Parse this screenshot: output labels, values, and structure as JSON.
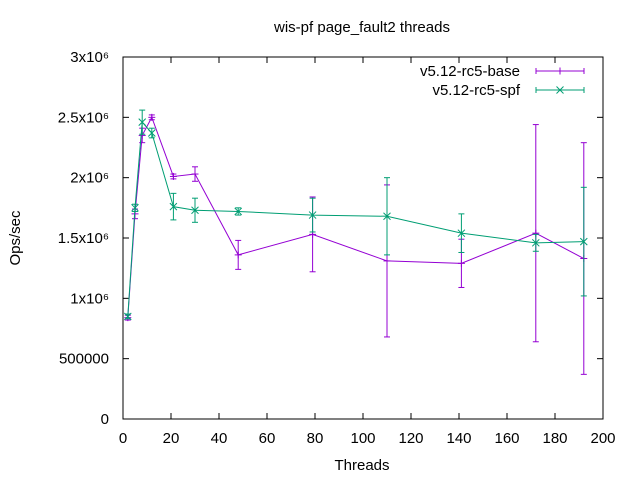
{
  "chart_data": {
    "type": "line",
    "title": "wis-pf page_fault2 threads",
    "xlabel": "Threads",
    "ylabel": "Ops/sec",
    "xlim": [
      0,
      200
    ],
    "ylim": [
      0,
      3000000
    ],
    "x_ticks": [
      0,
      20,
      40,
      60,
      80,
      100,
      120,
      140,
      160,
      180,
      200
    ],
    "y_ticks": [
      {
        "value": 0,
        "label": "0"
      },
      {
        "value": 500000,
        "label": "500000"
      },
      {
        "value": 1000000,
        "label": "1x10⁶"
      },
      {
        "value": 1500000,
        "label": "1.5x10⁶"
      },
      {
        "value": 2000000,
        "label": "2x10⁶"
      },
      {
        "value": 2500000,
        "label": "2.5x10⁶"
      },
      {
        "value": 3000000,
        "label": "3x10⁶"
      }
    ],
    "grid": false,
    "legend_position": "top-right",
    "error_bars": true,
    "series": [
      {
        "name": "v5.12-rc5-base",
        "color": "#9400d3",
        "marker": "plus",
        "x": [
          2,
          5,
          8,
          12,
          21,
          30,
          48,
          79,
          110,
          141,
          172,
          192
        ],
        "y": [
          840000,
          1700000,
          2350000,
          2500000,
          2010000,
          2030000,
          1360000,
          1530000,
          1310000,
          1290000,
          1540000,
          1330000
        ],
        "y_low": [
          820000,
          1660000,
          2290000,
          2480000,
          1990000,
          1970000,
          1240000,
          1220000,
          680000,
          1090000,
          640000,
          370000
        ],
        "y_high": [
          860000,
          1740000,
          2410000,
          2520000,
          2030000,
          2090000,
          1480000,
          1840000,
          1940000,
          1490000,
          2440000,
          2290000
        ]
      },
      {
        "name": "v5.12-rc5-spf",
        "color": "#009e73",
        "marker": "cross",
        "x": [
          2,
          5,
          8,
          12,
          21,
          30,
          48,
          79,
          110,
          141,
          172,
          192
        ],
        "y": [
          850000,
          1750000,
          2460000,
          2370000,
          1760000,
          1730000,
          1720000,
          1690000,
          1680000,
          1540000,
          1460000,
          1470000
        ],
        "y_low": [
          830000,
          1720000,
          2360000,
          2330000,
          1650000,
          1630000,
          1690000,
          1550000,
          1360000,
          1380000,
          1390000,
          1020000
        ],
        "y_high": [
          870000,
          1780000,
          2560000,
          2410000,
          1870000,
          1830000,
          1750000,
          1830000,
          2000000,
          1700000,
          1530000,
          1920000
        ]
      }
    ]
  }
}
